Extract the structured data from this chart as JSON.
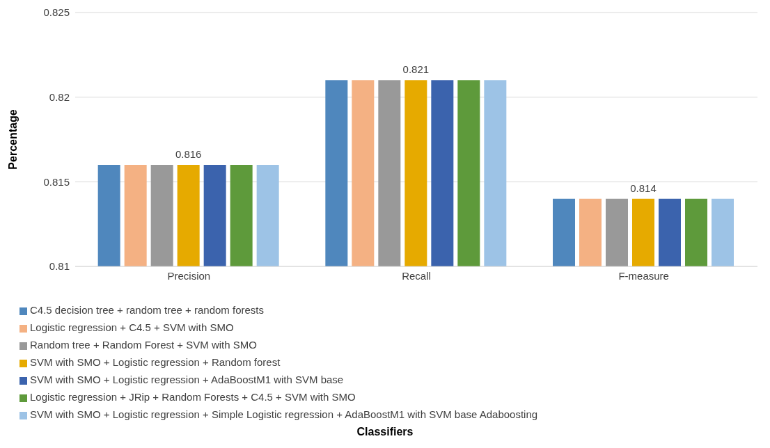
{
  "chart_data": {
    "type": "bar",
    "annotations": [
      "Classifiers"
    ],
    "ylabel": "Percentage",
    "categories": [
      "Precision",
      "Recall",
      "F-measure"
    ],
    "series": [
      {
        "name": "C4.5 decision tree + random tree + random forests",
        "color": "#4f87bd",
        "values": [
          0.816,
          0.821,
          0.814
        ]
      },
      {
        "name": "Logistic regression + C4.5 + SVM with SMO",
        "color": "#f4b183",
        "values": [
          0.816,
          0.821,
          0.814
        ]
      },
      {
        "name": "Random tree + Random Forest + SVM with SMO",
        "color": "#999999",
        "values": [
          0.816,
          0.821,
          0.814
        ]
      },
      {
        "name": "SVM with SMO + Logistic regression + Random forest",
        "color": "#e6aa00",
        "values": [
          0.816,
          0.821,
          0.814
        ],
        "value_labels": [
          "0.816",
          "0.821",
          "0.814"
        ]
      },
      {
        "name": "SVM with SMO + Logistic regression + AdaBoostM1 with SVM base",
        "color": "#3b63ad",
        "values": [
          0.816,
          0.821,
          0.814
        ]
      },
      {
        "name": "Logistic regression + JRip + Random Forests + C4.5 + SVM with SMO",
        "color": "#5e9a3b",
        "values": [
          0.816,
          0.821,
          0.814
        ]
      },
      {
        "name": "SVM with SMO + Logistic regression + Simple Logistic regression + AdaBoostM1 with SVM base Adaboosting",
        "color": "#9dc3e6",
        "values": [
          0.816,
          0.821,
          0.814
        ]
      }
    ],
    "ylim": [
      0.81,
      0.825
    ],
    "yticks": [
      0.81,
      0.815,
      0.82,
      0.825
    ],
    "grid": "y",
    "legend": "bottom"
  }
}
